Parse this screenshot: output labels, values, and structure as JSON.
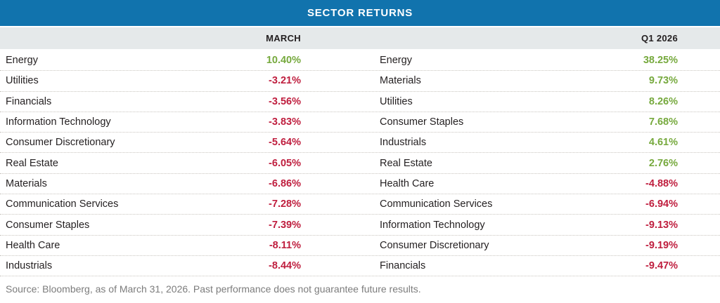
{
  "title": "SECTOR RETURNS",
  "columns": {
    "left_header": "MARCH",
    "right_header": "Q1 2026"
  },
  "rows": [
    {
      "l_sector": "Energy",
      "l_value": "10.40%",
      "r_sector": "Energy",
      "r_value": "38.25%"
    },
    {
      "l_sector": "Utilities",
      "l_value": "-3.21%",
      "r_sector": "Materials",
      "r_value": "9.73%"
    },
    {
      "l_sector": "Financials",
      "l_value": "-3.56%",
      "r_sector": "Utilities",
      "r_value": "8.26%"
    },
    {
      "l_sector": "Information Technology",
      "l_value": "-3.83%",
      "r_sector": "Consumer Staples",
      "r_value": "7.68%"
    },
    {
      "l_sector": "Consumer Discretionary",
      "l_value": "-5.64%",
      "r_sector": "Industrials",
      "r_value": "4.61%"
    },
    {
      "l_sector": "Real Estate",
      "l_value": "-6.05%",
      "r_sector": "Real Estate",
      "r_value": "2.76%"
    },
    {
      "l_sector": "Materials",
      "l_value": "-6.86%",
      "r_sector": "Health Care",
      "r_value": "-4.88%"
    },
    {
      "l_sector": "Communication Services",
      "l_value": "-7.28%",
      "r_sector": "Communication Services",
      "r_value": "-6.94%"
    },
    {
      "l_sector": "Consumer Staples",
      "l_value": "-7.39%",
      "r_sector": "Information Technology",
      "r_value": "-9.13%"
    },
    {
      "l_sector": "Health Care",
      "l_value": "-8.11%",
      "r_sector": "Consumer Discretionary",
      "r_value": "-9.19%"
    },
    {
      "l_sector": "Industrials",
      "l_value": "-8.44%",
      "r_sector": "Financials",
      "r_value": "-9.47%"
    }
  ],
  "footer": "Source: Bloomberg, as of March 31, 2026. Past performance does not guarantee future results.",
  "colors": {
    "header_blue": "#1173ad",
    "header_gray": "#e5e9ea",
    "positive_green": "#76a93d",
    "negative_red": "#bf1e3e"
  },
  "chart_data": {
    "type": "table",
    "title": "SECTOR RETURNS",
    "columns": [
      "MARCH",
      "Q1 2026"
    ],
    "series": [
      {
        "name": "MARCH",
        "rows": [
          [
            "Energy",
            10.4
          ],
          [
            "Utilities",
            -3.21
          ],
          [
            "Financials",
            -3.56
          ],
          [
            "Information Technology",
            -3.83
          ],
          [
            "Consumer Discretionary",
            -5.64
          ],
          [
            "Real Estate",
            -6.05
          ],
          [
            "Materials",
            -6.86
          ],
          [
            "Communication Services",
            -7.28
          ],
          [
            "Consumer Staples",
            -7.39
          ],
          [
            "Health Care",
            -8.11
          ],
          [
            "Industrials",
            -8.44
          ]
        ]
      },
      {
        "name": "Q1 2026",
        "rows": [
          [
            "Energy",
            38.25
          ],
          [
            "Materials",
            9.73
          ],
          [
            "Utilities",
            8.26
          ],
          [
            "Consumer Staples",
            7.68
          ],
          [
            "Industrials",
            4.61
          ],
          [
            "Real Estate",
            2.76
          ],
          [
            "Health Care",
            -4.88
          ],
          [
            "Communication Services",
            -6.94
          ],
          [
            "Information Technology",
            -9.13
          ],
          [
            "Consumer Discretionary",
            -9.19
          ],
          [
            "Financials",
            -9.47
          ]
        ]
      }
    ],
    "value_unit": "%",
    "positive_color": "#76a93d",
    "negative_color": "#bf1e3e",
    "source": "Source: Bloomberg, as of March 31, 2026. Past performance does not guarantee future results."
  }
}
